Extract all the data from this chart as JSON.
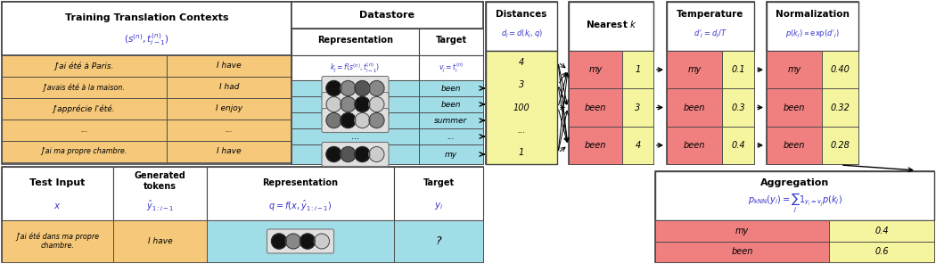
{
  "fig_width": 10.5,
  "fig_height": 2.96,
  "dpi": 100,
  "colors": {
    "orange_bg": "#f5c87a",
    "cyan_bg": "#a0dde6",
    "yellow_bg": "#f5f5a0",
    "pink_bg": "#f08080",
    "white_bg": "#ffffff",
    "border": "#555555"
  },
  "french_texts": [
    "J'ai été à Paris.",
    "J'avais été à la maison.",
    "J'apprécie l'été.",
    "...",
    "J'ai ma propre chambre."
  ],
  "english_texts": [
    "I have",
    "I had",
    "I enjoy",
    "...",
    "I have"
  ],
  "datastore_targets": [
    "been",
    "been",
    "summer",
    "...",
    "my"
  ],
  "circle_patterns": [
    [
      "#111111",
      "#888888",
      "#555555",
      "#888888"
    ],
    [
      "#cccccc",
      "#888888",
      "#111111",
      "#cccccc"
    ],
    [
      "#777777",
      "#111111",
      "#cccccc",
      "#888888"
    ],
    null,
    [
      "#111111",
      "#555555",
      "#111111",
      "#cccccc"
    ]
  ],
  "test_circle": [
    "#111111",
    "#888888",
    "#111111",
    "#cccccc"
  ],
  "distances": [
    "4",
    "3",
    "100",
    "...",
    "1"
  ],
  "nearest_k_words": [
    "my",
    "been",
    "been"
  ],
  "nearest_k_nums": [
    "1",
    "3",
    "4"
  ],
  "temp_words": [
    "my",
    "been",
    "been"
  ],
  "temp_nums": [
    "0.1",
    "0.3",
    "0.4"
  ],
  "norm_words": [
    "my",
    "been",
    "been"
  ],
  "norm_nums": [
    "0.40",
    "0.32",
    "0.28"
  ],
  "agg_words": [
    "my",
    "been"
  ],
  "agg_nums": [
    "0.4",
    "0.6"
  ]
}
